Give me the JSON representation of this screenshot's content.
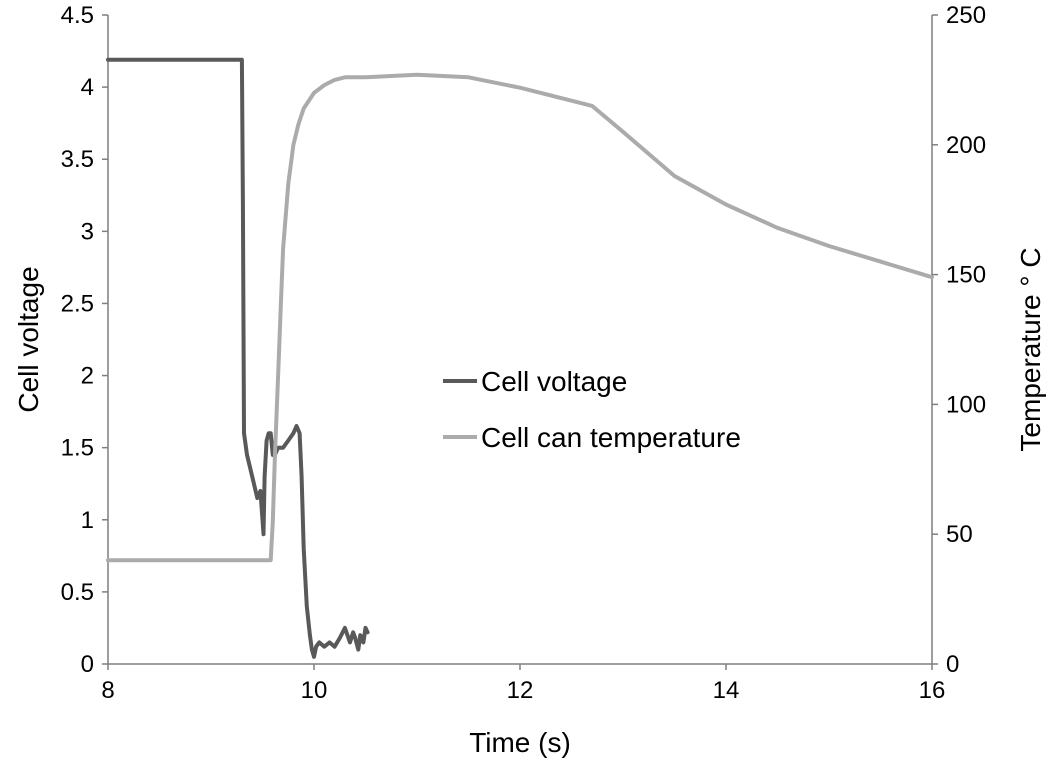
{
  "chart_data": {
    "type": "line",
    "title": "",
    "xlabel": "Time (s)",
    "ylabel": "Cell voltage",
    "y2label": "Temperature ° C",
    "xlim": [
      8,
      16
    ],
    "ylim": [
      0,
      4.5
    ],
    "y2lim": [
      0,
      250
    ],
    "xticks": [
      "8",
      "10",
      "12",
      "14",
      "16"
    ],
    "yticks": [
      "0",
      "0.5",
      "1",
      "1.5",
      "2",
      "2.5",
      "3",
      "3.5",
      "4",
      "4.5"
    ],
    "y2ticks": [
      "0",
      "50",
      "100",
      "150",
      "200",
      "250"
    ],
    "grid": false,
    "legend_position": "center",
    "series": [
      {
        "name": "Cell voltage",
        "axis": "left",
        "color": "#595959",
        "x": [
          8.0,
          9.0,
          9.3,
          9.31,
          9.32,
          9.35,
          9.4,
          9.45,
          9.48,
          9.5,
          9.51,
          9.52,
          9.54,
          9.56,
          9.58,
          9.6,
          9.62,
          9.65,
          9.7,
          9.75,
          9.8,
          9.83,
          9.86,
          9.88,
          9.9,
          9.93,
          9.96,
          9.98,
          10.0,
          10.02,
          10.05,
          10.1,
          10.15,
          10.2,
          10.25,
          10.3,
          10.35,
          10.38,
          10.4,
          10.43,
          10.45,
          10.48,
          10.5,
          10.52
        ],
        "y": [
          4.19,
          4.19,
          4.19,
          3.2,
          1.6,
          1.45,
          1.3,
          1.15,
          1.2,
          1.0,
          0.9,
          1.3,
          1.55,
          1.6,
          1.6,
          1.45,
          1.45,
          1.5,
          1.5,
          1.55,
          1.6,
          1.65,
          1.6,
          1.3,
          0.8,
          0.4,
          0.2,
          0.1,
          0.05,
          0.12,
          0.15,
          0.12,
          0.15,
          0.12,
          0.18,
          0.25,
          0.15,
          0.22,
          0.18,
          0.1,
          0.2,
          0.15,
          0.25,
          0.22
        ]
      },
      {
        "name": "Cell can temperature",
        "axis": "right",
        "color": "#ababab",
        "x": [
          8.0,
          9.0,
          9.5,
          9.58,
          9.6,
          9.62,
          9.65,
          9.68,
          9.7,
          9.75,
          9.8,
          9.85,
          9.9,
          10.0,
          10.1,
          10.2,
          10.3,
          10.5,
          11.0,
          11.5,
          12.0,
          12.5,
          12.7,
          13.0,
          13.5,
          14.0,
          14.5,
          15.0,
          15.5,
          16.0
        ],
        "y": [
          40,
          40,
          40,
          40,
          55,
          80,
          110,
          140,
          160,
          185,
          200,
          208,
          214,
          220,
          223,
          225,
          226,
          226,
          227,
          226,
          222,
          217,
          215,
          205,
          188,
          177,
          168,
          161,
          155,
          149
        ]
      }
    ]
  }
}
